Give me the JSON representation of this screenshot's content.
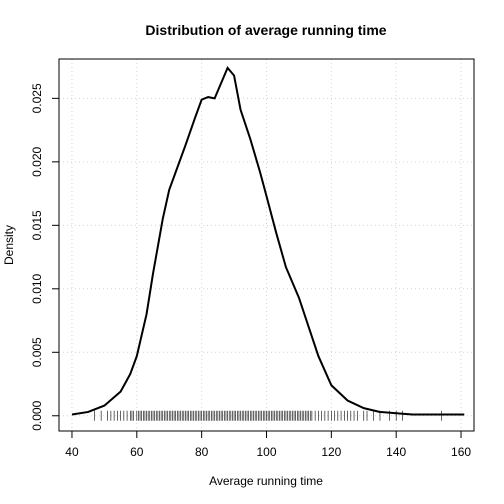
{
  "chart_data": {
    "type": "line",
    "title": "Distribution of average running time",
    "xlabel": "Average running time",
    "ylabel": "Density",
    "xlim": [
      36,
      164
    ],
    "ylim": [
      -0.0012,
      0.0281
    ],
    "x_ticks": [
      40,
      60,
      80,
      100,
      120,
      140,
      160
    ],
    "x_tick_labels": [
      "40",
      "60",
      "80",
      "100",
      "120",
      "140",
      "160"
    ],
    "y_ticks": [
      0,
      0.005,
      0.01,
      0.015,
      0.02,
      0.025
    ],
    "y_tick_labels": [
      "0.000",
      "0.005",
      "0.010",
      "0.015",
      "0.020",
      "0.025"
    ],
    "grid": true,
    "series": [
      {
        "x": [
          40,
          45,
          50,
          55,
          58,
          60,
          63,
          65,
          68,
          70,
          72,
          75,
          78,
          80,
          82,
          84,
          86,
          88,
          90,
          92,
          95,
          98,
          100,
          103,
          106,
          110,
          113,
          116,
          120,
          125,
          130,
          135,
          140,
          145,
          150,
          155,
          161
        ],
        "y": [
          0.0001,
          0.0003,
          0.0008,
          0.0019,
          0.0033,
          0.0047,
          0.008,
          0.0112,
          0.0155,
          0.0178,
          0.0192,
          0.0213,
          0.0235,
          0.0249,
          0.0251,
          0.025,
          0.0262,
          0.0274,
          0.0268,
          0.0241,
          0.0218,
          0.0192,
          0.0173,
          0.0144,
          0.0117,
          0.0093,
          0.007,
          0.0047,
          0.0024,
          0.0012,
          0.0006,
          0.0003,
          0.0002,
          0.0001,
          0.0001,
          0.0001,
          0.0001
        ]
      }
    ],
    "rug": [
      47,
      49,
      51,
      52,
      53,
      54,
      55,
      56,
      57,
      58,
      58.5,
      59,
      60,
      60.5,
      61,
      61.5,
      62,
      62.5,
      63,
      63.5,
      64,
      64.5,
      65,
      65.5,
      66,
      66.5,
      67,
      67.5,
      68,
      68.5,
      69,
      69.5,
      70,
      70.5,
      71,
      71.5,
      72,
      72.5,
      73,
      73.5,
      74,
      74.5,
      75,
      75.5,
      76,
      76.5,
      77,
      77.5,
      78,
      78.5,
      79,
      79.5,
      80,
      80.5,
      81,
      81.5,
      82,
      82.5,
      83,
      83.5,
      84,
      84.5,
      85,
      85.5,
      86,
      86.5,
      87,
      87.5,
      88,
      88.5,
      89,
      89.5,
      90,
      90.5,
      91,
      91.5,
      92,
      92.5,
      93,
      93.5,
      94,
      94.5,
      95,
      95.5,
      96,
      96.5,
      97,
      97.5,
      98,
      98.5,
      99,
      99.5,
      100,
      100.5,
      101,
      101.5,
      102,
      102.5,
      103,
      103.5,
      104,
      104.5,
      105,
      105.5,
      106,
      106.5,
      107,
      107.5,
      108,
      108.5,
      109,
      109.5,
      110,
      110.5,
      111,
      111.5,
      112,
      112.5,
      113,
      113.5,
      114,
      115,
      116,
      117,
      118,
      119,
      120,
      121,
      122,
      123,
      124,
      125,
      126,
      127,
      128,
      130,
      131,
      133,
      135,
      138,
      140,
      142,
      154
    ]
  }
}
